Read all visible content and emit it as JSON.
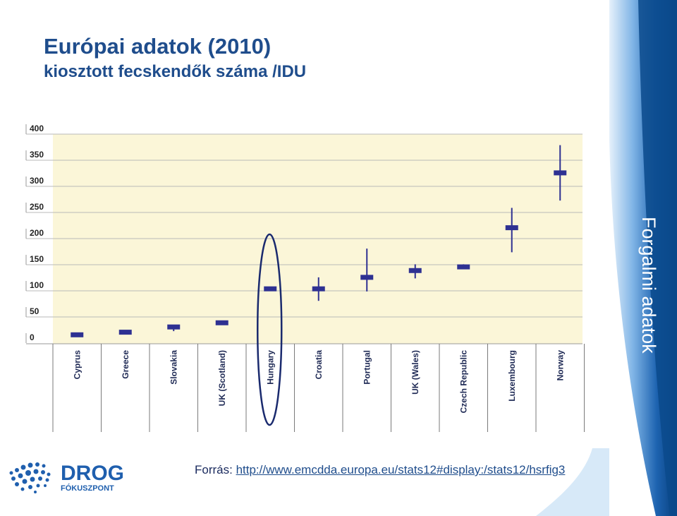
{
  "header": {
    "title": "Európai adatok (2010)",
    "subtitle": "kiosztott fecskendők száma /IDU"
  },
  "side_label": "Forgalmi adatok",
  "source": {
    "prefix": "Forrás: ",
    "link_text": "http://www.emcdda.europa.eu/stats12#display:/stats12/hsrfig3"
  },
  "logo": {
    "word": "DROG",
    "subword": "FÓKUSZPONT"
  },
  "colors": {
    "title": "#1f4d8c",
    "marker": "#2e3192",
    "plot_bg": "#fbf6d8",
    "band_dark": "#0a4a8c",
    "band_mid": "#2f79c9",
    "band_light": "#cfe4f7"
  },
  "chart_data": {
    "type": "range-marker",
    "title": "",
    "xlabel": "",
    "ylabel": "",
    "ylim": [
      0,
      400
    ],
    "yticks": [
      "0",
      "50",
      "100",
      "150",
      "200",
      "250",
      "300",
      "350",
      "400"
    ],
    "highlight": "Hungary",
    "categories": [
      "Cyprus",
      "Greece",
      "Slovakia",
      "UK (Scotland)",
      "Hungary",
      "Croatia",
      "Portugal",
      "UK (Wales)",
      "Czech Republic",
      "Luxembourg",
      "Norway"
    ],
    "series": [
      {
        "name": "value",
        "values": [
          5,
          10,
          20,
          28,
          93,
          93,
          115,
          128,
          135,
          210,
          315
        ]
      },
      {
        "name": "low",
        "values": [
          5,
          10,
          12,
          28,
          93,
          70,
          88,
          113,
          133,
          163,
          262
        ]
      },
      {
        "name": "high",
        "values": [
          5,
          10,
          24,
          28,
          93,
          115,
          170,
          140,
          140,
          248,
          368
        ]
      }
    ]
  }
}
